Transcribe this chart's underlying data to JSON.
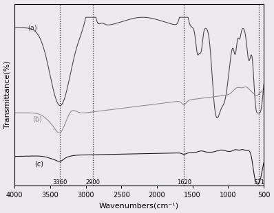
{
  "title": "",
  "xlabel": "Wavenumbers(cm⁻¹)",
  "ylabel": "Transmittance(%)",
  "xlim": [
    4000,
    500
  ],
  "vlines": [
    3360,
    2900,
    1620,
    571
  ],
  "vline_labels": [
    "3360",
    "2900",
    "1620",
    "571"
  ],
  "labels": [
    "(a)",
    "(b)",
    "(c)"
  ],
  "background_color": "#edeaed",
  "line_color_a": "#404040",
  "line_color_b": "#888888",
  "line_color_c": "#111111",
  "xticks": [
    4000,
    3500,
    3000,
    2500,
    2000,
    1500,
    1000,
    500
  ]
}
